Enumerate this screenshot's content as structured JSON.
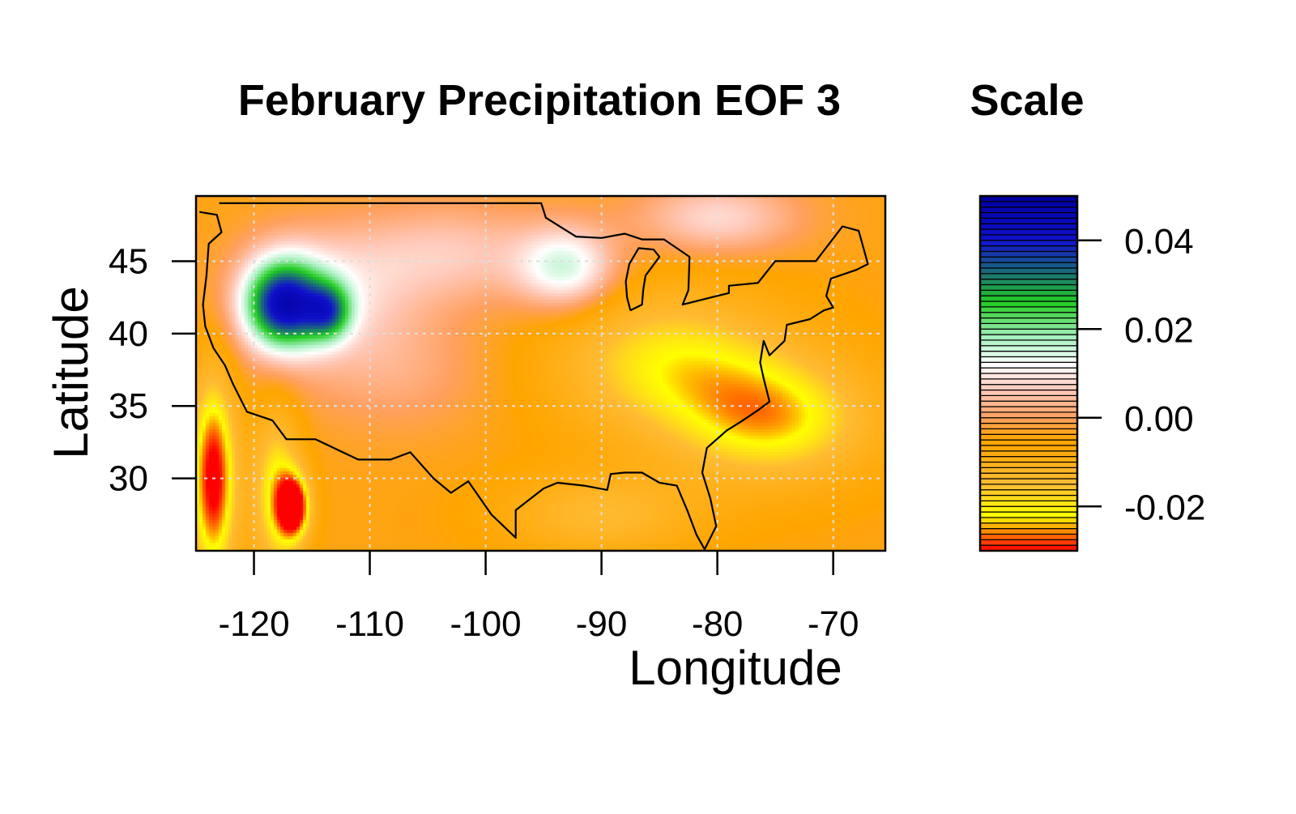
{
  "chart_data": {
    "type": "heatmap",
    "title": "February Precipitation EOF 3",
    "xlabel": "Longitude",
    "ylabel": "Latitude",
    "xlim": [
      -125,
      -65.5
    ],
    "ylim": [
      25,
      49.5
    ],
    "x_ticks": [
      -120,
      -110,
      -100,
      -90,
      -80,
      -70
    ],
    "y_ticks": [
      30,
      35,
      40,
      45
    ],
    "grid": true,
    "colorbar": {
      "title": "Scale",
      "range": [
        -0.03,
        0.05
      ],
      "ticks": [
        0.04,
        0.02,
        0.0,
        -0.02
      ],
      "tick_labels": [
        "0.04",
        "0.02",
        "0.00",
        "-0.02"
      ],
      "stops": [
        {
          "v": -0.03,
          "color": "#ff0000"
        },
        {
          "v": -0.022,
          "color": "#ffff00"
        },
        {
          "v": -0.015,
          "color": "#ffbb33"
        },
        {
          "v": -0.005,
          "color": "#ffa500"
        },
        {
          "v": 0.0,
          "color": "#ffa060"
        },
        {
          "v": 0.006,
          "color": "#ffc8b8"
        },
        {
          "v": 0.012,
          "color": "#ffffff"
        },
        {
          "v": 0.018,
          "color": "#a8f0c0"
        },
        {
          "v": 0.026,
          "color": "#22cc22"
        },
        {
          "v": 0.033,
          "color": "#1a6a7a"
        },
        {
          "v": 0.04,
          "color": "#1010cc"
        },
        {
          "v": 0.05,
          "color": "#0000a0"
        }
      ]
    },
    "field": {
      "background": -0.004,
      "features": [
        {
          "lon": -117.5,
          "lat": 42.0,
          "slon": 2.4,
          "slat": 2.2,
          "amp": 0.04
        },
        {
          "lon": -113.5,
          "lat": 41.5,
          "slon": 1.4,
          "slat": 1.4,
          "amp": 0.022
        },
        {
          "lon": -114.0,
          "lat": 42.8,
          "slon": 5.0,
          "slat": 3.0,
          "amp": 0.012
        },
        {
          "lon": -103.0,
          "lat": 45.5,
          "slon": 6.0,
          "slat": 2.5,
          "amp": 0.01
        },
        {
          "lon": -93.0,
          "lat": 44.5,
          "slon": 3.0,
          "slat": 2.0,
          "amp": 0.018
        },
        {
          "lon": -80.0,
          "lat": 48.0,
          "slon": 5.0,
          "slat": 1.8,
          "amp": 0.012
        },
        {
          "lon": -108.0,
          "lat": 37.5,
          "slon": 6.0,
          "slat": 3.0,
          "amp": 0.006
        },
        {
          "lon": -123.5,
          "lat": 30.0,
          "slon": 1.4,
          "slat": 5.0,
          "amp": -0.028
        },
        {
          "lon": -116.5,
          "lat": 28.0,
          "slon": 1.0,
          "slat": 1.6,
          "amp": -0.026
        },
        {
          "lon": -118.0,
          "lat": 29.0,
          "slon": 1.5,
          "slat": 4.0,
          "amp": -0.018
        },
        {
          "lon": -84.0,
          "lat": 38.0,
          "slon": 7.0,
          "slat": 3.5,
          "amp": -0.016
        },
        {
          "lon": -75.0,
          "lat": 34.0,
          "slon": 6.0,
          "slat": 3.0,
          "amp": -0.018
        },
        {
          "lon": -90.0,
          "lat": 27.5,
          "slon": 6.0,
          "slat": 2.0,
          "amp": -0.01
        }
      ]
    },
    "coastline": [
      [
        -124.7,
        48.4
      ],
      [
        -123.2,
        48.2
      ],
      [
        -122.8,
        47.0
      ],
      [
        -123.9,
        46.2
      ],
      [
        -124.1,
        44.0
      ],
      [
        -124.4,
        42.0
      ],
      [
        -124.2,
        40.5
      ],
      [
        -123.5,
        39.0
      ],
      [
        -122.5,
        37.8
      ],
      [
        -121.8,
        36.5
      ],
      [
        -120.6,
        34.6
      ],
      [
        -118.4,
        34.0
      ],
      [
        -117.2,
        32.7
      ],
      [
        -114.7,
        32.7
      ],
      [
        -111.0,
        31.3
      ],
      [
        -108.2,
        31.3
      ],
      [
        -106.5,
        31.8
      ],
      [
        -104.5,
        30.0
      ],
      [
        -103.0,
        29.0
      ],
      [
        -101.5,
        29.8
      ],
      [
        -99.5,
        27.5
      ],
      [
        -97.4,
        25.9
      ],
      [
        -97.4,
        27.8
      ],
      [
        -95.0,
        29.3
      ],
      [
        -93.8,
        29.7
      ],
      [
        -91.5,
        29.5
      ],
      [
        -89.5,
        29.2
      ],
      [
        -89.2,
        30.3
      ],
      [
        -88.0,
        30.4
      ],
      [
        -86.5,
        30.4
      ],
      [
        -85.0,
        29.7
      ],
      [
        -83.5,
        29.5
      ],
      [
        -82.6,
        27.8
      ],
      [
        -81.8,
        26.1
      ],
      [
        -81.1,
        25.1
      ],
      [
        -80.1,
        26.7
      ],
      [
        -80.6,
        28.6
      ],
      [
        -81.3,
        30.4
      ],
      [
        -80.9,
        32.1
      ],
      [
        -79.2,
        33.3
      ],
      [
        -78.0,
        33.9
      ],
      [
        -76.5,
        34.7
      ],
      [
        -75.5,
        35.3
      ],
      [
        -76.0,
        36.9
      ],
      [
        -76.3,
        38.0
      ],
      [
        -76.0,
        39.5
      ],
      [
        -75.5,
        38.5
      ],
      [
        -74.2,
        39.5
      ],
      [
        -74.0,
        40.6
      ],
      [
        -72.0,
        41.0
      ],
      [
        -70.8,
        41.6
      ],
      [
        -70.0,
        41.8
      ],
      [
        -70.6,
        42.6
      ],
      [
        -70.2,
        43.8
      ],
      [
        -68.0,
        44.4
      ],
      [
        -67.0,
        44.8
      ],
      [
        -67.8,
        47.1
      ],
      [
        -69.2,
        47.4
      ],
      [
        -71.5,
        45.0
      ],
      [
        -75.0,
        45.0
      ],
      [
        -76.5,
        43.5
      ],
      [
        -79.0,
        43.3
      ],
      [
        -79.0,
        42.8
      ],
      [
        -80.5,
        42.5
      ],
      [
        -83.0,
        42.0
      ],
      [
        -82.5,
        43.0
      ],
      [
        -82.4,
        45.3
      ],
      [
        -83.5,
        45.9
      ],
      [
        -84.6,
        46.5
      ],
      [
        -86.5,
        46.5
      ],
      [
        -88.0,
        46.9
      ],
      [
        -90.0,
        46.6
      ],
      [
        -92.2,
        46.7
      ],
      [
        -94.8,
        48.0
      ],
      [
        -95.2,
        49.0
      ],
      [
        -123.0,
        49.0
      ]
    ],
    "lake_michigan": [
      [
        -87.5,
        41.6
      ],
      [
        -87.8,
        42.5
      ],
      [
        -87.9,
        43.6
      ],
      [
        -87.6,
        44.8
      ],
      [
        -86.8,
        45.9
      ],
      [
        -85.5,
        45.8
      ],
      [
        -85.0,
        45.3
      ],
      [
        -86.2,
        44.0
      ],
      [
        -86.4,
        43.0
      ],
      [
        -86.5,
        42.0
      ],
      [
        -87.5,
        41.6
      ]
    ]
  }
}
